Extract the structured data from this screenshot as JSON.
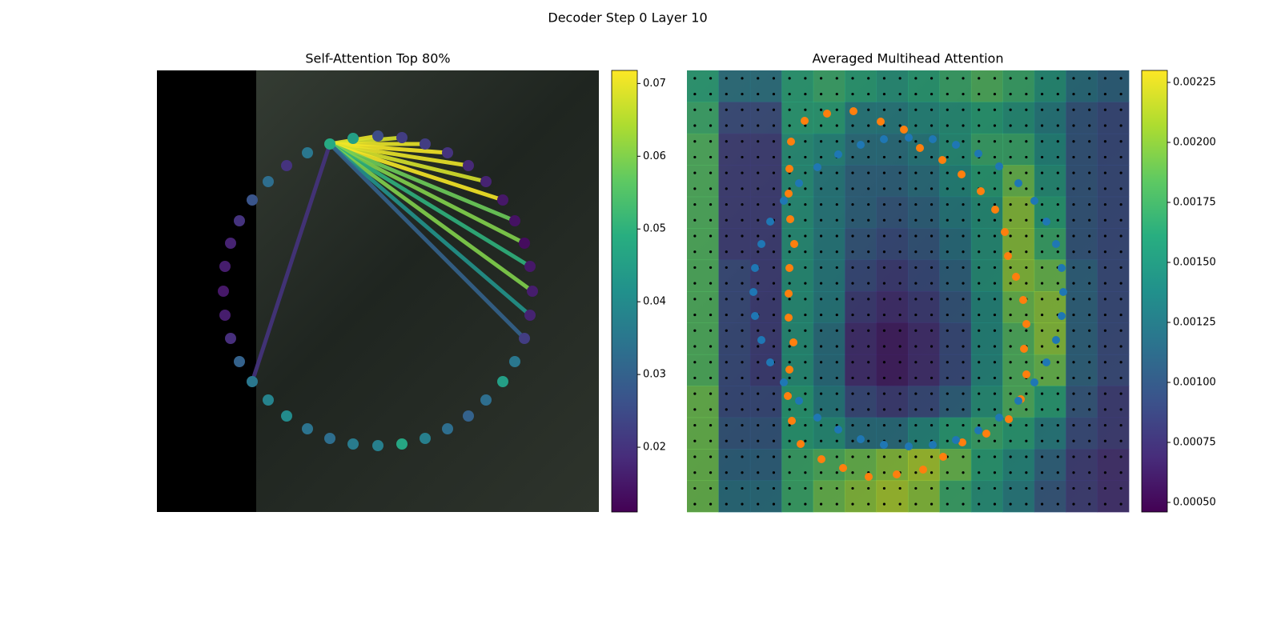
{
  "title": "Decoder Step 0 Layer 10",
  "chart_data": [
    {
      "type": "graph",
      "title": "Self-Attention Top 80%",
      "xlim": [
        0,
        552
      ],
      "ylim": [
        552,
        0
      ],
      "x": [
        276,
        306,
        335,
        363,
        389,
        411,
        432,
        447,
        459,
        466,
        469,
        466,
        459,
        447,
        432,
        411,
        389,
        363,
        335,
        306,
        276,
        245,
        216,
        188,
        162,
        139,
        119,
        103,
        92,
        85,
        83,
        85,
        92,
        103,
        119,
        139,
        162,
        188,
        216,
        245
      ],
      "y": [
        82,
        84,
        92,
        103,
        119,
        139,
        162,
        188,
        216,
        245,
        276,
        306,
        335,
        364,
        389,
        412,
        432,
        448,
        460,
        467,
        469,
        467,
        460,
        448,
        432,
        412,
        389,
        364,
        335,
        306,
        276,
        245,
        216,
        188,
        162,
        139,
        119,
        103,
        92,
        85
      ],
      "values": [
        0.025,
        0.022,
        0.022,
        0.02,
        0.018,
        0.017,
        0.015,
        0.014,
        0.013,
        0.015,
        0.016,
        0.017,
        0.022,
        0.035,
        0.045,
        0.033,
        0.03,
        0.033,
        0.037,
        0.047,
        0.037,
        0.036,
        0.033,
        0.034,
        0.04,
        0.038,
        0.035,
        0.03,
        0.019,
        0.016,
        0.015,
        0.016,
        0.017,
        0.02,
        0.027,
        0.033,
        0.02,
        0.035,
        0.048,
        0.045
      ],
      "edges": {
        "source": 38,
        "targets": [
          0,
          1,
          2,
          3,
          4,
          5,
          6,
          7,
          8,
          9,
          10,
          11,
          12,
          26
        ],
        "values": [
          0.07,
          0.068,
          0.07,
          0.071,
          0.07,
          0.068,
          0.071,
          0.058,
          0.06,
          0.05,
          0.06,
          0.042,
          0.03,
          0.02
        ]
      },
      "colormap": "viridis",
      "clim": [
        0.0111,
        0.0718
      ],
      "cticks": [
        0.02,
        0.03,
        0.04,
        0.05,
        0.06,
        0.07
      ]
    },
    {
      "type": "heatmap",
      "title": "Averaged Multihead Attention",
      "xlim": [
        0,
        552
      ],
      "ylim": [
        552,
        0
      ],
      "values": [
        [
          0.0016,
          0.0012,
          0.0012,
          0.0016,
          0.0017,
          0.0016,
          0.0015,
          0.0016,
          0.0017,
          0.0018,
          0.0017,
          0.0015,
          0.0012,
          0.0011
        ],
        [
          0.0017,
          0.0009,
          0.0009,
          0.0016,
          0.0016,
          0.0013,
          0.0013,
          0.0014,
          0.0015,
          0.0016,
          0.0015,
          0.0013,
          0.001,
          0.0009
        ],
        [
          0.0018,
          0.0008,
          0.0008,
          0.0015,
          0.0014,
          0.0012,
          0.0012,
          0.0013,
          0.0015,
          0.0017,
          0.0017,
          0.0014,
          0.001,
          0.0009
        ],
        [
          0.0018,
          0.0008,
          0.0008,
          0.0015,
          0.0013,
          0.0011,
          0.0011,
          0.0012,
          0.0014,
          0.0016,
          0.0019,
          0.0015,
          0.001,
          0.0009
        ],
        [
          0.0018,
          0.0008,
          0.0008,
          0.0015,
          0.0013,
          0.0011,
          0.001,
          0.0011,
          0.0013,
          0.0015,
          0.002,
          0.0016,
          0.001,
          0.0009
        ],
        [
          0.0018,
          0.0008,
          0.0008,
          0.0015,
          0.0013,
          0.001,
          0.0009,
          0.001,
          0.0012,
          0.0015,
          0.002,
          0.0017,
          0.001,
          0.0009
        ],
        [
          0.0018,
          0.0009,
          0.0008,
          0.0015,
          0.0013,
          0.0009,
          0.0008,
          0.0009,
          0.0011,
          0.0015,
          0.002,
          0.0019,
          0.0011,
          0.0009
        ],
        [
          0.0018,
          0.0009,
          0.0008,
          0.0015,
          0.0013,
          0.0008,
          0.0007,
          0.0008,
          0.001,
          0.0014,
          0.0019,
          0.002,
          0.0011,
          0.0009
        ],
        [
          0.0018,
          0.0009,
          0.0008,
          0.0015,
          0.0012,
          0.0007,
          0.0006,
          0.0007,
          0.0009,
          0.0014,
          0.0018,
          0.002,
          0.0011,
          0.0009
        ],
        [
          0.0018,
          0.0009,
          0.0008,
          0.0015,
          0.0012,
          0.0007,
          0.0006,
          0.0007,
          0.0009,
          0.0014,
          0.0018,
          0.0019,
          0.0011,
          0.0009
        ],
        [
          0.0019,
          0.0009,
          0.0009,
          0.0016,
          0.0013,
          0.0009,
          0.0008,
          0.0009,
          0.0011,
          0.0015,
          0.0018,
          0.0016,
          0.001,
          0.0008
        ],
        [
          0.0019,
          0.001,
          0.001,
          0.0016,
          0.0015,
          0.0012,
          0.0012,
          0.0014,
          0.0016,
          0.0017,
          0.0016,
          0.0013,
          0.0009,
          0.0008
        ],
        [
          0.0019,
          0.0011,
          0.0011,
          0.0017,
          0.0018,
          0.0019,
          0.002,
          0.0021,
          0.0019,
          0.0016,
          0.0014,
          0.0011,
          0.0008,
          0.0007
        ],
        [
          0.0019,
          0.0012,
          0.0012,
          0.0017,
          0.0019,
          0.002,
          0.0021,
          0.002,
          0.0017,
          0.0015,
          0.0013,
          0.001,
          0.0008,
          0.0007
        ]
      ],
      "series": [
        {
          "color": "#ff7f0e",
          "x": [
            147,
            175,
            208,
            242,
            271,
            291,
            319,
            343,
            367,
            385,
            397,
            401,
            411,
            420,
            424,
            421,
            424,
            417,
            402,
            374,
            344,
            320,
            295,
            262,
            227,
            195,
            168,
            142,
            131,
            126,
            128,
            133,
            127,
            127,
            128,
            134,
            129,
            127,
            128,
            130
          ],
          "y": [
            63,
            54,
            51,
            64,
            74,
            97,
            112,
            130,
            151,
            174,
            202,
            232,
            258,
            287,
            317,
            348,
            380,
            411,
            436,
            454,
            465,
            483,
            499,
            505,
            508,
            497,
            486,
            467,
            438,
            407,
            374,
            340,
            309,
            279,
            247,
            217,
            186,
            154,
            123,
            89
          ]
        },
        {
          "color": "#1f77b4",
          "x": [
            277,
            307,
            336,
            364,
            390,
            414,
            434,
            449,
            461,
            468,
            470,
            468,
            461,
            449,
            434,
            414,
            390,
            364,
            336,
            307,
            277,
            246,
            217,
            189,
            163,
            140,
            121,
            104,
            93,
            85,
            83,
            85,
            93,
            104,
            121,
            140,
            163,
            189,
            217,
            246
          ],
          "y": [
            84,
            86,
            93,
            104,
            120,
            141,
            163,
            189,
            217,
            247,
            277,
            307,
            337,
            365,
            390,
            413,
            434,
            450,
            462,
            468,
            470,
            468,
            461,
            449,
            434,
            413,
            390,
            365,
            337,
            307,
            277,
            247,
            217,
            189,
            163,
            141,
            121,
            105,
            93,
            86
          ]
        }
      ],
      "colormap": "viridis",
      "clim": [
        0.00046,
        0.0023
      ],
      "cticks": [
        {
          "value": 0.0005,
          "label": "0.00050"
        },
        {
          "value": 0.00075,
          "label": "0.00075"
        },
        {
          "value": 0.001,
          "label": "0.00100"
        },
        {
          "value": 0.00125,
          "label": "0.00125"
        },
        {
          "value": 0.0015,
          "label": "0.00150"
        },
        {
          "value": 0.00175,
          "label": "0.00175"
        },
        {
          "value": 0.002,
          "label": "0.00200"
        },
        {
          "value": 0.00225,
          "label": "0.00225"
        }
      ]
    }
  ]
}
